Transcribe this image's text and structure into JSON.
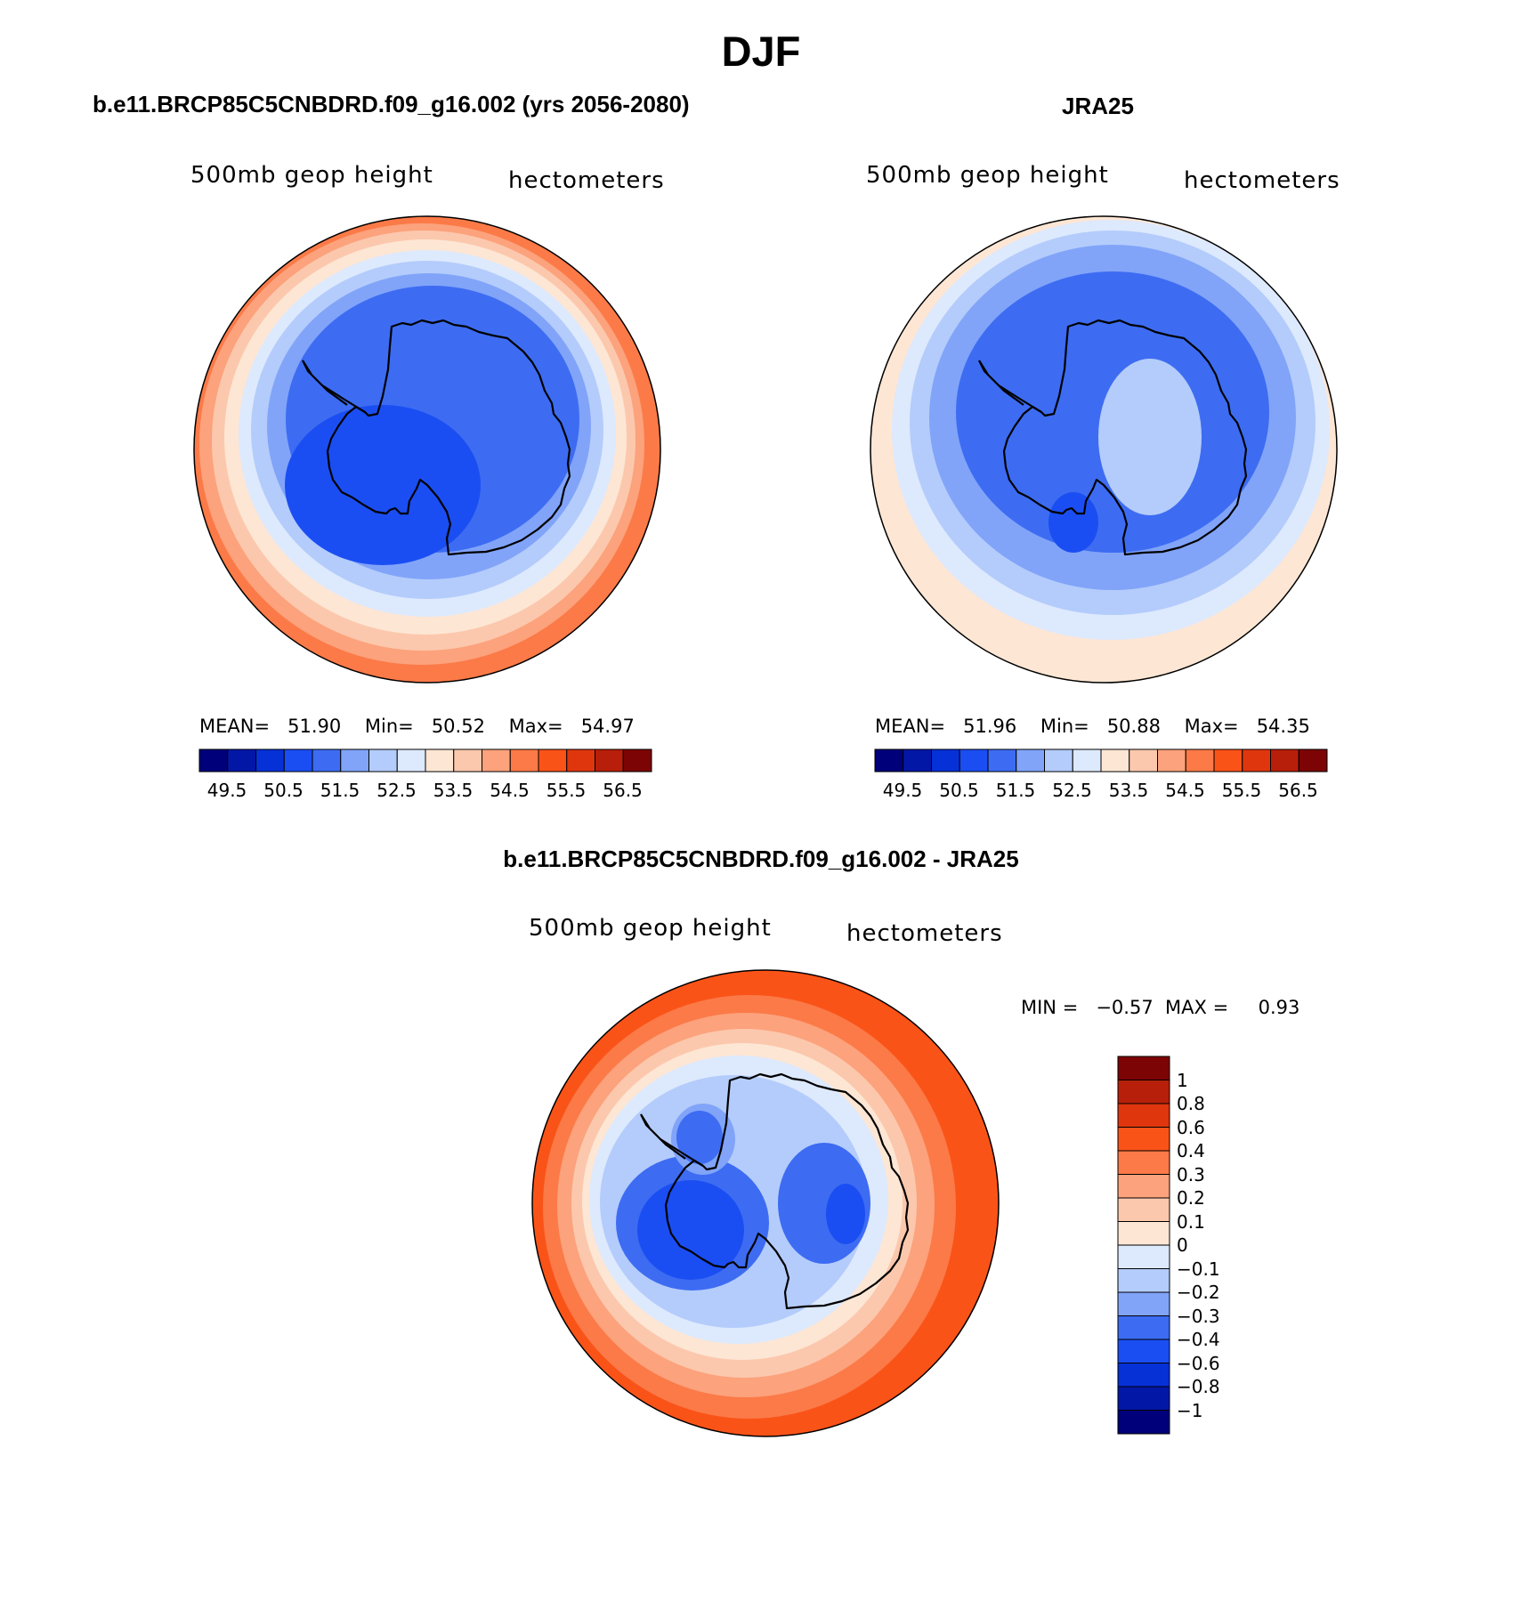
{
  "page_title": "DJF",
  "colors": {
    "blue_to_red_16": [
      "#00007a",
      "#0317a6",
      "#0531d6",
      "#1b4ef2",
      "#3d6cf2",
      "#81a4f9",
      "#b4ccfb",
      "#dde9fd",
      "#fde6d4",
      "#fcc8ad",
      "#fca27c",
      "#fb7a48",
      "#fa5318",
      "#e0360e",
      "#b81f0a",
      "#7d0404"
    ],
    "coast": "#000000",
    "border": "#000000"
  },
  "chart_data": [
    {
      "type": "heatmap",
      "id": "model",
      "title": "b.e11.BRCP85C5CNBDRD.f09_g16.002 (yrs 2056-2080)",
      "variable": "500mb geop height",
      "units": "hectometers",
      "projection": "south polar stereographic",
      "stats": {
        "mean_label": "MEAN=",
        "mean": "51.90",
        "min_label": "Min=",
        "min": "50.52",
        "max_label": "Max=",
        "max": "54.97"
      },
      "colorbar": {
        "orientation": "horizontal",
        "levels": [
          "49.5",
          "50.5",
          "51.5",
          "52.5",
          "53.5",
          "54.5",
          "55.5",
          "56.5"
        ]
      }
    },
    {
      "type": "heatmap",
      "id": "obs",
      "title": "JRA25",
      "variable": "500mb geop height",
      "units": "hectometers",
      "projection": "south polar stereographic",
      "stats": {
        "mean_label": "MEAN=",
        "mean": "51.96",
        "min_label": "Min=",
        "min": "50.88",
        "max_label": "Max=",
        "max": "54.35"
      },
      "colorbar": {
        "orientation": "horizontal",
        "levels": [
          "49.5",
          "50.5",
          "51.5",
          "52.5",
          "53.5",
          "54.5",
          "55.5",
          "56.5"
        ]
      }
    },
    {
      "type": "heatmap",
      "id": "diff",
      "title": "b.e11.BRCP85C5CNBDRD.f09_g16.002 - JRA25",
      "variable": "500mb geop height",
      "units": "hectometers",
      "projection": "south polar stereographic",
      "stats": {
        "min_label": "MIN =",
        "min": "−0.57",
        "max_label": "MAX =",
        "max": "0.93"
      },
      "colorbar": {
        "orientation": "vertical",
        "levels": [
          "1",
          "0.8",
          "0.6",
          "0.4",
          "0.3",
          "0.2",
          "0.1",
          "0",
          "−0.1",
          "−0.2",
          "−0.3",
          "−0.4",
          "−0.6",
          "−0.8",
          "−1"
        ]
      }
    }
  ]
}
